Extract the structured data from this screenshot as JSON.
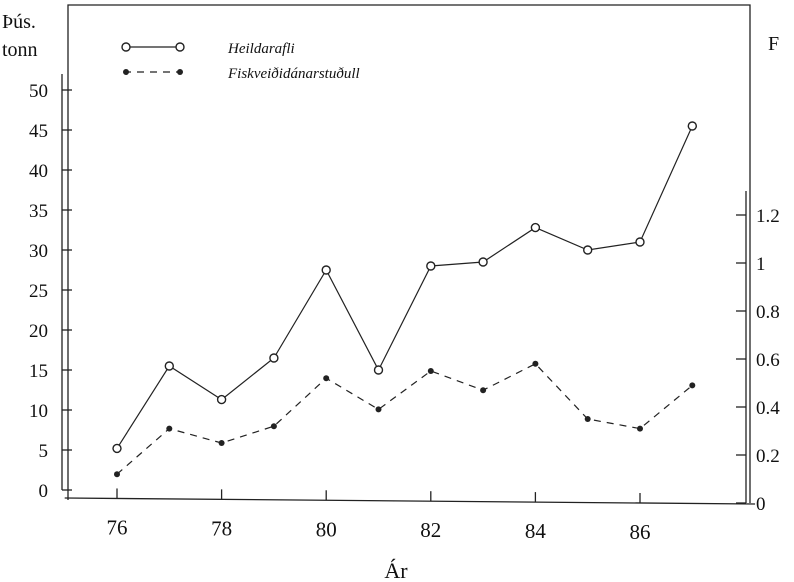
{
  "chart_data": {
    "type": "line",
    "xlabel": "Ár",
    "ylabel_left": "Þús.",
    "ylabel_left_line2": "tonn",
    "ylabel_right": "F",
    "x": [
      76,
      77,
      78,
      79,
      80,
      81,
      82,
      83,
      84,
      85,
      86,
      87
    ],
    "x_ticks": [
      76,
      78,
      80,
      82,
      84,
      86
    ],
    "xlim": [
      75,
      88.2
    ],
    "ylim_left": [
      0,
      55
    ],
    "y_ticks_left": [
      0,
      5,
      10,
      15,
      20,
      25,
      30,
      35,
      40,
      45,
      50
    ],
    "ylim_right": [
      0,
      2.0
    ],
    "y_ticks_right": [
      0,
      0.2,
      0.4,
      0.6,
      0.8,
      1,
      1.2
    ],
    "y_tick_labels_right": [
      "0",
      "0.2",
      "0.4",
      "0.6",
      "0.8",
      "1",
      "1.2"
    ],
    "grid": false,
    "legend": "top-left",
    "series": [
      {
        "name": "Heildarafli",
        "axis": "left",
        "style": "solid-open-circle",
        "values": [
          5.2,
          15.5,
          11.3,
          16.5,
          27.5,
          15.0,
          28.0,
          28.5,
          32.8,
          30.0,
          31.0,
          45.5
        ]
      },
      {
        "name": "Fiskveiðidánarstuðull",
        "axis": "right",
        "style": "dashed-filled-dot",
        "values": [
          0.12,
          0.31,
          0.25,
          0.32,
          0.52,
          0.39,
          0.55,
          0.47,
          0.58,
          0.35,
          0.31,
          0.49
        ]
      }
    ]
  }
}
